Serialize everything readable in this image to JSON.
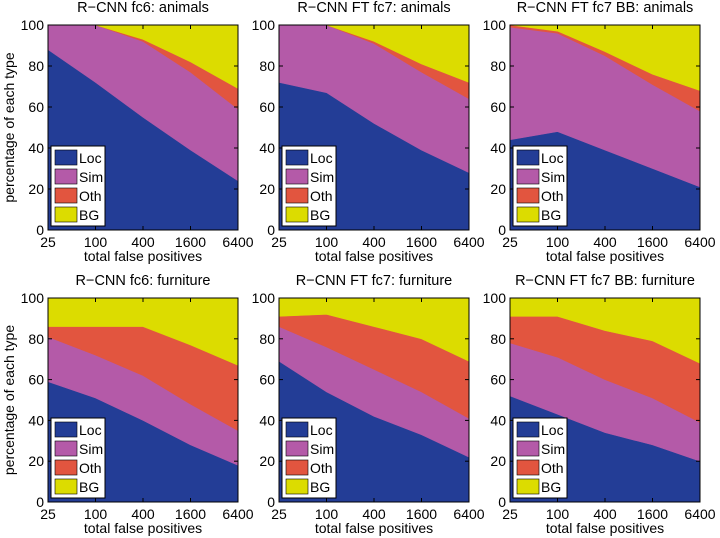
{
  "colors": {
    "Loc": "#233d96",
    "Sim": "#b45aa8",
    "Oth": "#e2553f",
    "BG": "#dcdc00"
  },
  "chart_data": [
    {
      "type": "area",
      "title": "R−CNN fc6: animals",
      "xlabel": "total false positives",
      "ylabel": "percentage of each type",
      "x": [
        25,
        100,
        400,
        1600,
        6400
      ],
      "xticks": [
        "25",
        "100",
        "400",
        "1600",
        "6400"
      ],
      "yticks": [
        "0",
        "20",
        "40",
        "60",
        "80",
        "100"
      ],
      "ylim": [
        0,
        100
      ],
      "legend": [
        "Loc",
        "Sim",
        "Oth",
        "BG"
      ],
      "series": [
        {
          "name": "Loc",
          "values": [
            88,
            72,
            55,
            39,
            24
          ]
        },
        {
          "name": "Sim",
          "values": [
            12,
            28,
            37,
            38,
            35
          ]
        },
        {
          "name": "Oth",
          "values": [
            0,
            0,
            1,
            5,
            10
          ]
        },
        {
          "name": "BG",
          "values": [
            0,
            0,
            7,
            18,
            31
          ]
        }
      ]
    },
    {
      "type": "area",
      "title": "R−CNN FT fc7: animals",
      "xlabel": "total false positives",
      "ylabel": "",
      "x": [
        25,
        100,
        400,
        1600,
        6400
      ],
      "xticks": [
        "25",
        "100",
        "400",
        "1600",
        "6400"
      ],
      "yticks": [
        "0",
        "20",
        "40",
        "60",
        "80",
        "100"
      ],
      "ylim": [
        0,
        100
      ],
      "legend": [
        "Loc",
        "Sim",
        "Oth",
        "BG"
      ],
      "series": [
        {
          "name": "Loc",
          "values": [
            72,
            67,
            52,
            39,
            28
          ]
        },
        {
          "name": "Sim",
          "values": [
            28,
            33,
            39,
            38,
            36
          ]
        },
        {
          "name": "Oth",
          "values": [
            0,
            0,
            1,
            4,
            8
          ]
        },
        {
          "name": "BG",
          "values": [
            0,
            0,
            8,
            19,
            28
          ]
        }
      ]
    },
    {
      "type": "area",
      "title": "R−CNN FT fc7 BB: animals",
      "xlabel": "total false positives",
      "ylabel": "",
      "x": [
        25,
        100,
        400,
        1600,
        6400
      ],
      "xticks": [
        "25",
        "100",
        "400",
        "1600",
        "6400"
      ],
      "yticks": [
        "0",
        "20",
        "40",
        "60",
        "80",
        "100"
      ],
      "ylim": [
        0,
        100
      ],
      "legend": [
        "Loc",
        "Sim",
        "Oth",
        "BG"
      ],
      "series": [
        {
          "name": "Loc",
          "values": [
            44,
            48,
            39,
            30,
            21
          ]
        },
        {
          "name": "Sim",
          "values": [
            55,
            48,
            46,
            41,
            37
          ]
        },
        {
          "name": "Oth",
          "values": [
            1,
            1,
            2,
            5,
            10
          ]
        },
        {
          "name": "BG",
          "values": [
            0,
            3,
            13,
            24,
            32
          ]
        }
      ]
    },
    {
      "type": "area",
      "title": "R−CNN fc6: furniture",
      "xlabel": "total false positives",
      "ylabel": "percentage of each type",
      "x": [
        25,
        100,
        400,
        1600,
        6400
      ],
      "xticks": [
        "25",
        "100",
        "400",
        "1600",
        "6400"
      ],
      "yticks": [
        "0",
        "20",
        "40",
        "60",
        "80",
        "100"
      ],
      "ylim": [
        0,
        100
      ],
      "legend": [
        "Loc",
        "Sim",
        "Oth",
        "BG"
      ],
      "series": [
        {
          "name": "Loc",
          "values": [
            59,
            51,
            40,
            28,
            18
          ]
        },
        {
          "name": "Sim",
          "values": [
            22,
            21,
            22,
            20,
            17
          ]
        },
        {
          "name": "Oth",
          "values": [
            5,
            14,
            24,
            29,
            32
          ]
        },
        {
          "name": "BG",
          "values": [
            14,
            14,
            14,
            23,
            33
          ]
        }
      ]
    },
    {
      "type": "area",
      "title": "R−CNN FT fc7: furniture",
      "xlabel": "total false positives",
      "ylabel": "",
      "x": [
        25,
        100,
        400,
        1600,
        6400
      ],
      "xticks": [
        "25",
        "100",
        "400",
        "1600",
        "6400"
      ],
      "yticks": [
        "0",
        "20",
        "40",
        "60",
        "80",
        "100"
      ],
      "ylim": [
        0,
        100
      ],
      "legend": [
        "Loc",
        "Sim",
        "Oth",
        "BG"
      ],
      "series": [
        {
          "name": "Loc",
          "values": [
            69,
            54,
            42,
            33,
            22
          ]
        },
        {
          "name": "Sim",
          "values": [
            17,
            22,
            23,
            21,
            19
          ]
        },
        {
          "name": "Oth",
          "values": [
            5,
            16,
            21,
            26,
            28
          ]
        },
        {
          "name": "BG",
          "values": [
            9,
            8,
            14,
            20,
            31
          ]
        }
      ]
    },
    {
      "type": "area",
      "title": "R−CNN FT fc7 BB: furniture",
      "xlabel": "total false positives",
      "ylabel": "",
      "x": [
        25,
        100,
        400,
        1600,
        6400
      ],
      "xticks": [
        "25",
        "100",
        "400",
        "1600",
        "6400"
      ],
      "yticks": [
        "0",
        "20",
        "40",
        "60",
        "80",
        "100"
      ],
      "ylim": [
        0,
        100
      ],
      "legend": [
        "Loc",
        "Sim",
        "Oth",
        "BG"
      ],
      "series": [
        {
          "name": "Loc",
          "values": [
            52,
            43,
            34,
            28,
            20
          ]
        },
        {
          "name": "Sim",
          "values": [
            26,
            28,
            26,
            23,
            19
          ]
        },
        {
          "name": "Oth",
          "values": [
            13,
            20,
            24,
            28,
            29
          ]
        },
        {
          "name": "BG",
          "values": [
            9,
            9,
            16,
            21,
            32
          ]
        }
      ]
    }
  ]
}
